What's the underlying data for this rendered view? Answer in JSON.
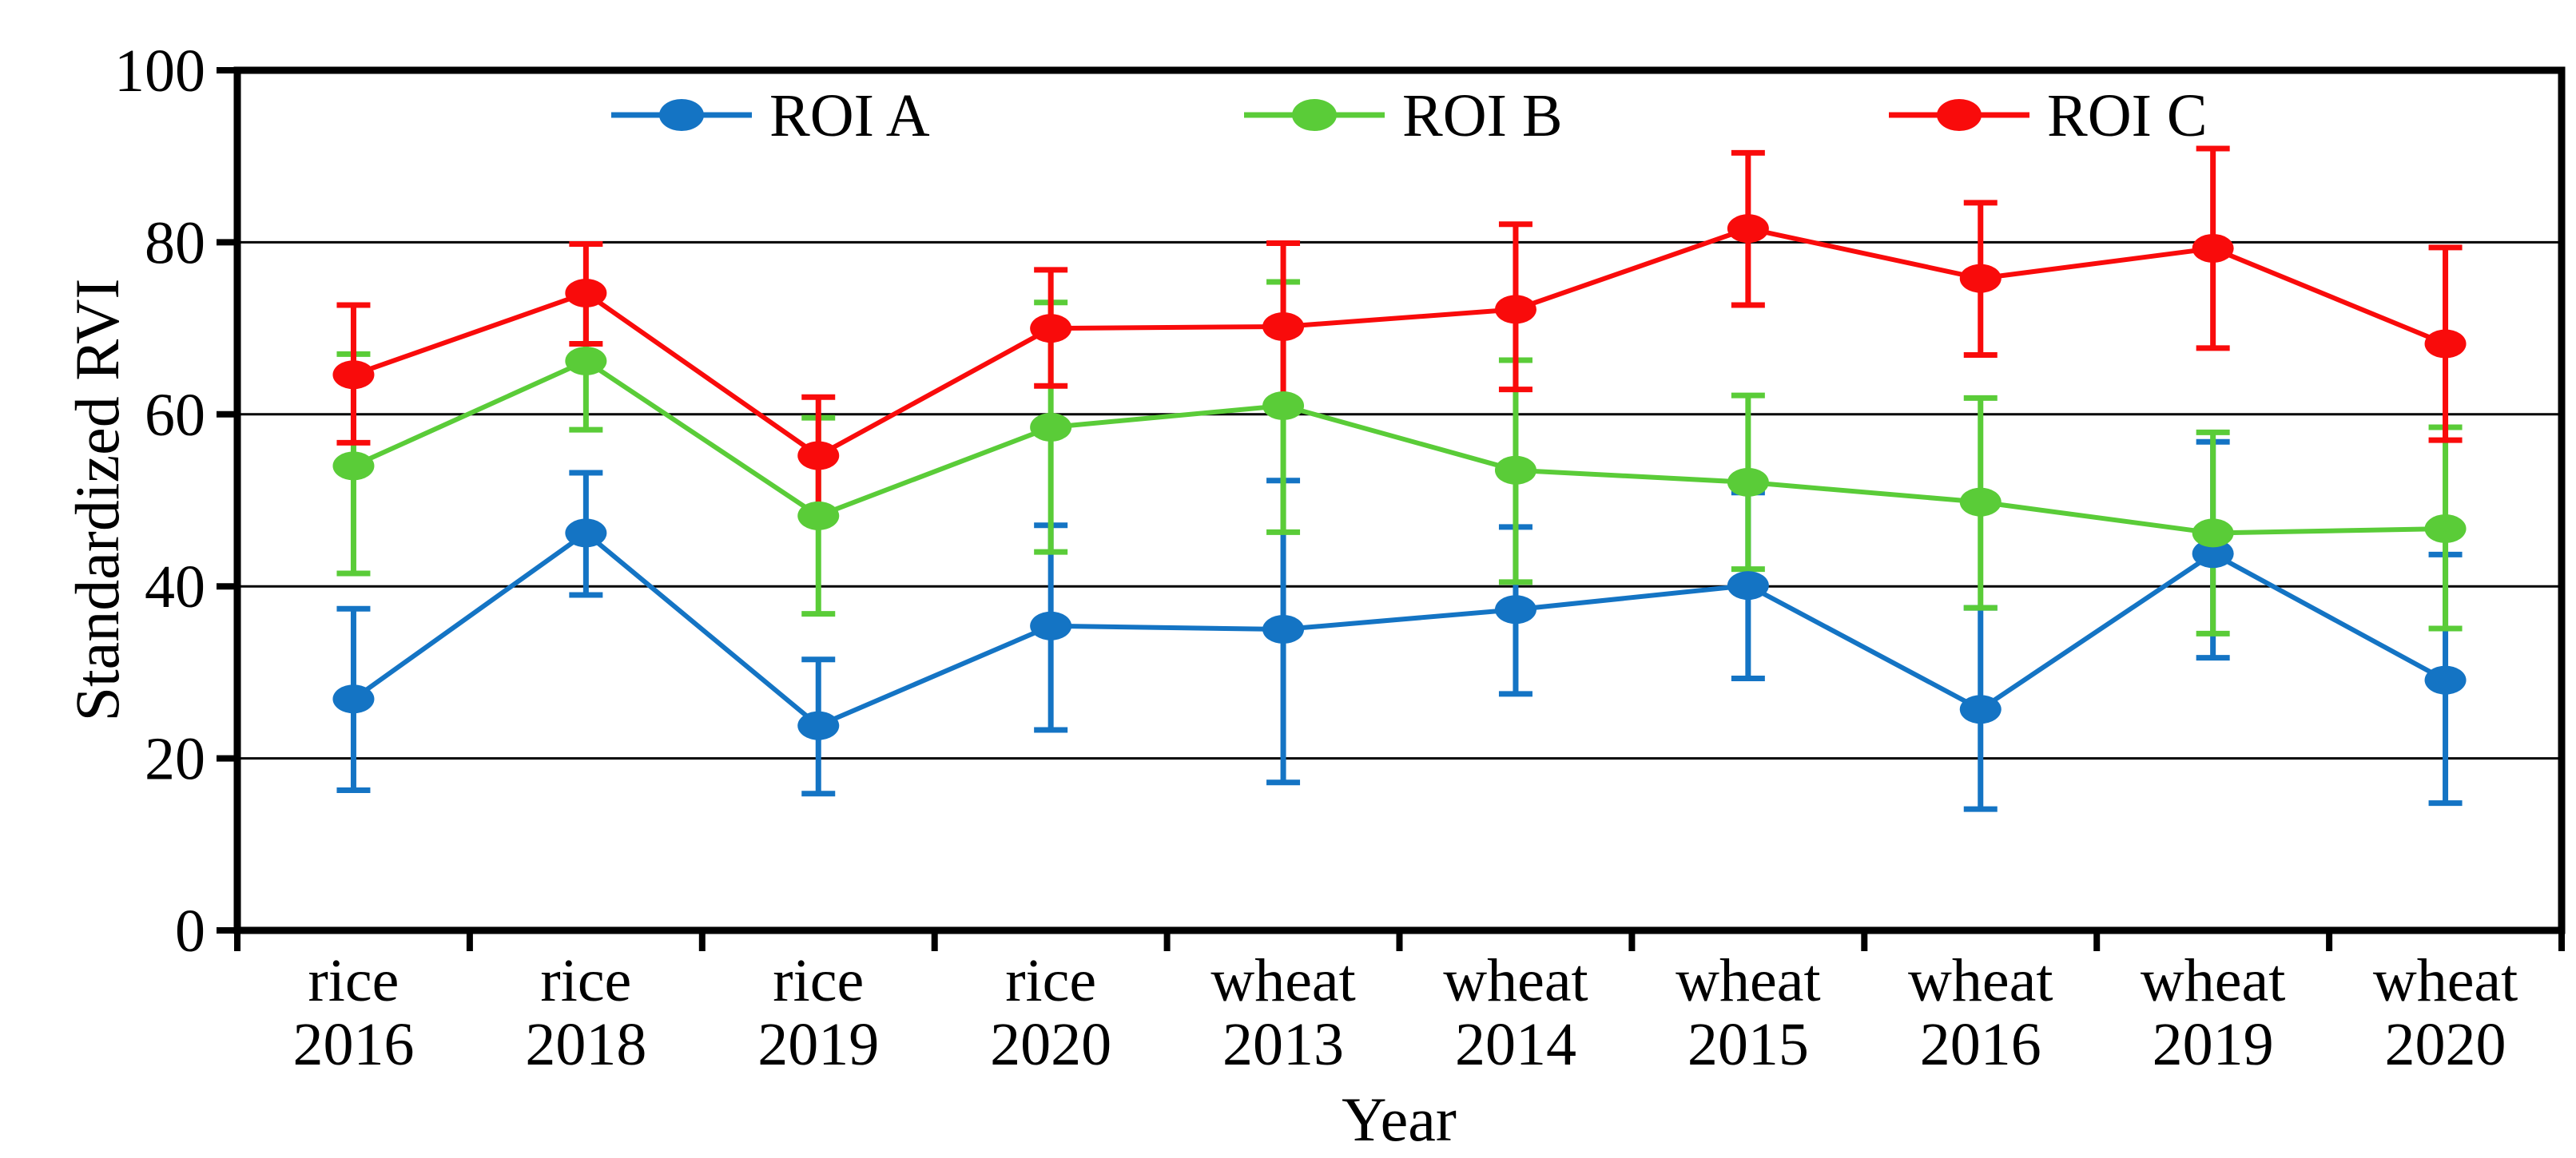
{
  "chart_data": {
    "type": "line",
    "title": "",
    "xlabel": "Year",
    "ylabel": "Standardized RVI",
    "ylim": [
      0,
      100
    ],
    "yticks": [
      0,
      20,
      40,
      60,
      80,
      100
    ],
    "grid": "horizontal",
    "legend_position": "top-inside",
    "error_bars": true,
    "categories": [
      {
        "crop": "rice",
        "year": "2016"
      },
      {
        "crop": "rice",
        "year": "2018"
      },
      {
        "crop": "rice",
        "year": "2019"
      },
      {
        "crop": "rice",
        "year": "2020"
      },
      {
        "crop": "wheat",
        "year": "2013"
      },
      {
        "crop": "wheat",
        "year": "2014"
      },
      {
        "crop": "wheat",
        "year": "2015"
      },
      {
        "crop": "wheat",
        "year": "2016"
      },
      {
        "crop": "wheat",
        "year": "2019"
      },
      {
        "crop": "wheat",
        "year": "2020"
      }
    ],
    "series": [
      {
        "name": "ROI A",
        "color": "#1474C4",
        "marker": "circle",
        "values": [
          26.9,
          46.2,
          23.8,
          35.4,
          35.0,
          37.3,
          40.1,
          25.7,
          43.8,
          29.1
        ],
        "error_lower": [
          16.3,
          39.0,
          15.9,
          23.3,
          17.2,
          27.5,
          29.3,
          14.1,
          31.7,
          14.8
        ],
        "error_upper": [
          37.4,
          53.2,
          31.5,
          47.1,
          52.3,
          46.9,
          50.9,
          37.5,
          56.8,
          43.7
        ]
      },
      {
        "name": "ROI B",
        "color": "#5ACC38",
        "marker": "circle",
        "values": [
          54.0,
          66.2,
          48.2,
          58.5,
          61.0,
          53.5,
          52.1,
          49.8,
          46.2,
          46.7
        ],
        "error_lower": [
          41.5,
          58.2,
          36.8,
          44.0,
          46.3,
          40.5,
          42.0,
          37.5,
          34.5,
          35.1
        ],
        "error_upper": [
          67.0,
          74.2,
          59.6,
          73.0,
          75.4,
          66.3,
          62.2,
          61.9,
          57.9,
          58.5
        ]
      },
      {
        "name": "ROI C",
        "color": "#F90B0B",
        "marker": "circle",
        "values": [
          64.6,
          74.1,
          55.2,
          70.0,
          70.2,
          72.2,
          81.6,
          75.8,
          79.3,
          68.2
        ],
        "error_lower": [
          56.7,
          68.2,
          48.4,
          63.3,
          60.5,
          62.9,
          72.7,
          66.9,
          67.7,
          57.0
        ],
        "error_upper": [
          72.7,
          79.8,
          62.0,
          76.8,
          79.9,
          82.1,
          90.4,
          84.6,
          90.9,
          79.4
        ]
      }
    ],
    "axis_color": "#000000",
    "grid_color": "#000000"
  }
}
